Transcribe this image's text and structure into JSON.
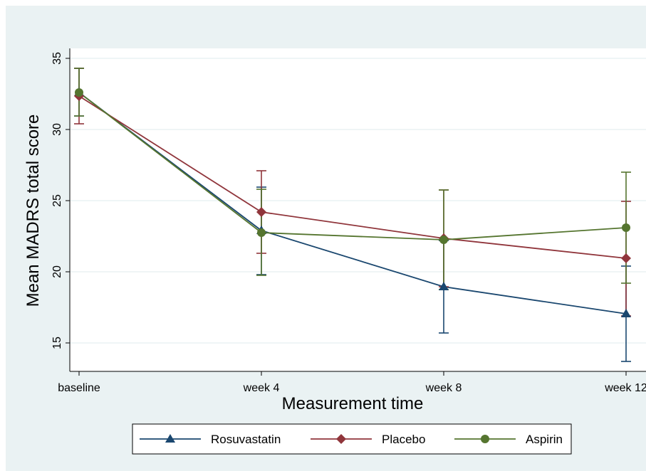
{
  "chart_data": {
    "type": "line",
    "xlabel": "Measurement time",
    "ylabel": "Mean MADRS total score",
    "categories": [
      "baseline",
      "week 4",
      "week 8",
      "week 12"
    ],
    "ylim": [
      13,
      35.7
    ],
    "yticks": [
      15,
      20,
      25,
      30,
      35
    ],
    "grid": true,
    "legend_position": "bottom",
    "series": [
      {
        "name": "Rosuvastatin",
        "color": "#1a476f",
        "marker": "triangle",
        "values": [
          32.6,
          22.9,
          18.95,
          17.05
        ],
        "error_low": [
          30.95,
          19.8,
          15.7,
          13.7
        ],
        "error_high": [
          34.3,
          25.95,
          22.2,
          20.4
        ]
      },
      {
        "name": "Placebo",
        "color": "#90353b",
        "marker": "diamond",
        "values": [
          32.35,
          24.2,
          22.35,
          20.95
        ],
        "error_low": [
          30.4,
          21.3,
          18.95,
          16.9
        ],
        "error_high": [
          34.3,
          27.1,
          25.75,
          24.95
        ]
      },
      {
        "name": "Aspirin",
        "color": "#55752f",
        "marker": "circle",
        "values": [
          32.6,
          22.75,
          22.25,
          23.1
        ],
        "error_low": [
          30.95,
          19.75,
          18.75,
          19.2
        ],
        "error_high": [
          34.3,
          25.8,
          25.75,
          27.0
        ]
      }
    ]
  }
}
